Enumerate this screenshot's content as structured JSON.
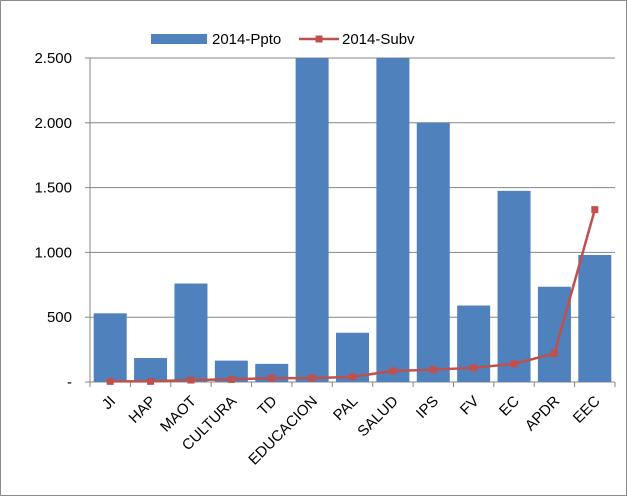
{
  "chart_data": {
    "type": "bar",
    "categories": [
      "JI",
      "HAP",
      "MAOT",
      "CULTURA",
      "TD",
      "EDUCACION",
      "PAL",
      "SALUD",
      "IPS",
      "FV",
      "EC",
      "APDR",
      "EEC"
    ],
    "series": [
      {
        "name": "2014-Ppto",
        "type": "bar",
        "color": "#4F81BD",
        "values": [
          530,
          185,
          760,
          165,
          140,
          2500,
          380,
          2500,
          2000,
          590,
          1475,
          735,
          980
        ]
      },
      {
        "name": "2014-Subv",
        "type": "line",
        "color": "#C0504D",
        "marker": "square",
        "values": [
          5,
          5,
          15,
          20,
          30,
          30,
          40,
          85,
          95,
          110,
          140,
          220,
          1330
        ]
      }
    ],
    "ylim": [
      0,
      2500
    ],
    "yticks": [
      0,
      500,
      1000,
      1500,
      2000,
      2500
    ],
    "ytick_labels": [
      "-",
      "500",
      "1.000",
      "1.500",
      "2.000",
      "2.500"
    ],
    "grid": true,
    "legend": "top-center",
    "title": "",
    "xlabel": "",
    "ylabel": ""
  }
}
